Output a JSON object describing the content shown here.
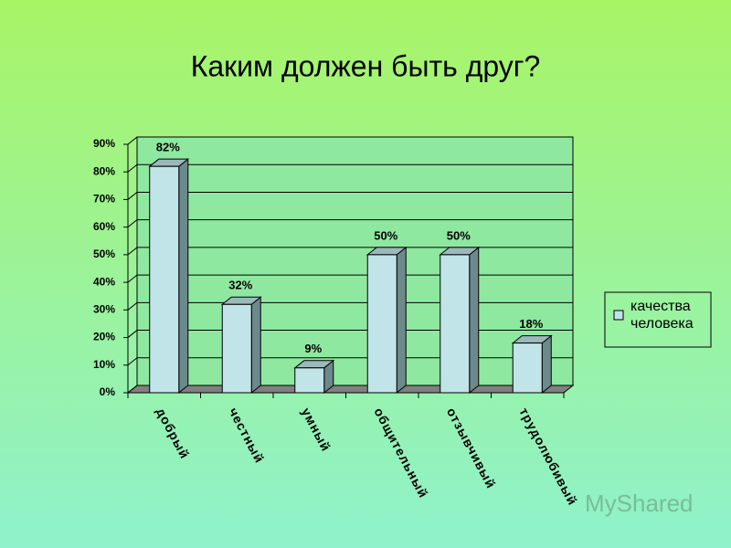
{
  "chart_data": {
    "type": "bar",
    "title": "Каким должен быть друг?",
    "categories": [
      "добрый",
      "честный",
      "умный",
      "общительный",
      "отзывчивый",
      "трудолюбивый"
    ],
    "series": [
      {
        "name": "качества человека",
        "color": "#c0e4e8",
        "values": [
          82,
          32,
          9,
          50,
          50,
          18
        ],
        "value_labels": [
          "82%",
          "32%",
          "9%",
          "50%",
          "50%",
          "18%"
        ]
      }
    ],
    "ylim": [
      0,
      90
    ],
    "yticks": [
      {
        "value": 0,
        "label": "0%"
      },
      {
        "value": 10,
        "label": "10%"
      },
      {
        "value": 20,
        "label": "20%"
      },
      {
        "value": 30,
        "label": "30%"
      },
      {
        "value": 40,
        "label": "40%"
      },
      {
        "value": 50,
        "label": "50%"
      },
      {
        "value": 60,
        "label": "60%"
      },
      {
        "value": 70,
        "label": "70%"
      },
      {
        "value": 80,
        "label": "80%"
      },
      {
        "value": 90,
        "label": "90%"
      }
    ],
    "grid": true,
    "legend": "right",
    "watermark": "MyShared"
  }
}
